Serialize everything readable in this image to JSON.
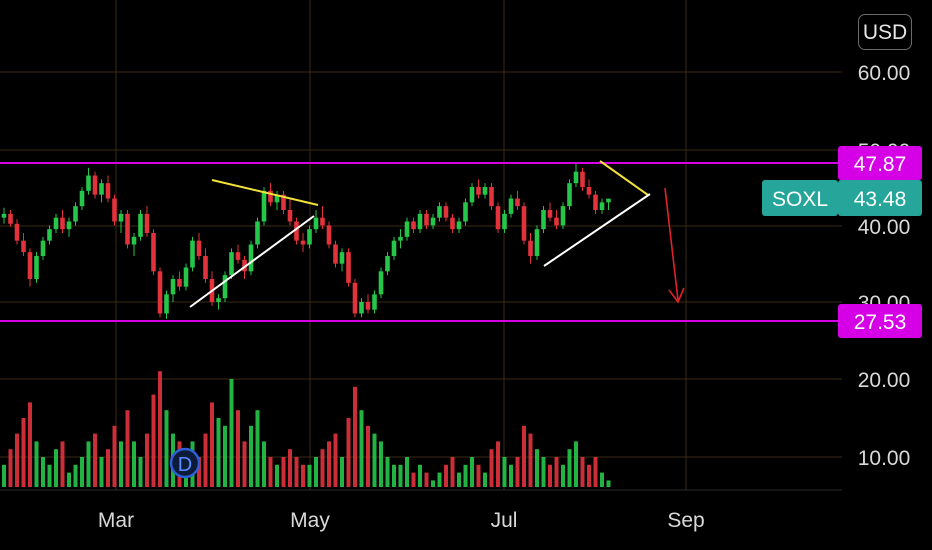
{
  "currency_button": "USD",
  "colors": {
    "up": "#26c64a",
    "down": "#e2333d",
    "range_line": "#d600e6",
    "trend_yellow": "#f2e23a",
    "trend_white": "#ffffff",
    "arrow": "#e0202a",
    "ticker_tag": "#26a69a",
    "grid": "#3a2a12"
  },
  "icons": {
    "dividend_marker": "dividend-icon"
  },
  "dividend_marker_label": "D",
  "chart_data": {
    "type": "candlestick",
    "symbol": "SOXL",
    "currency": "USD",
    "last_price": 43.48,
    "x_labels": [
      "Mar",
      "May",
      "Jul",
      "Sep"
    ],
    "price_axis_labels": [
      "60.00",
      "50.00",
      "40.00",
      "30.00"
    ],
    "volume_axis_labels": [
      "20.00",
      "10.00"
    ],
    "price_range": [
      23,
      67
    ],
    "volume_range": [
      0,
      23
    ],
    "horizontal_levels": [
      {
        "label": "47.87",
        "value": 47.87
      },
      {
        "label": "27.53",
        "value": 27.53
      }
    ],
    "ticker_tag": {
      "label": "SOXL",
      "value_label": "43.48"
    },
    "grid": true,
    "candles": [
      [
        41.0,
        42.3,
        40.2,
        41.5,
        9
      ],
      [
        41.5,
        42.0,
        39.8,
        40.2,
        11
      ],
      [
        40.2,
        40.8,
        37.5,
        38.0,
        13
      ],
      [
        38.0,
        39.0,
        36.0,
        36.5,
        15
      ],
      [
        36.5,
        37.0,
        32.0,
        33.0,
        17
      ],
      [
        33.0,
        36.5,
        32.5,
        36.0,
        12
      ],
      [
        36.0,
        38.5,
        35.5,
        38.0,
        10
      ],
      [
        38.0,
        40.0,
        37.5,
        39.5,
        9
      ],
      [
        39.5,
        41.5,
        39.0,
        41.0,
        11
      ],
      [
        41.0,
        42.0,
        39.0,
        39.5,
        12
      ],
      [
        39.5,
        41.0,
        38.5,
        40.5,
        8
      ],
      [
        40.5,
        43.0,
        40.0,
        42.5,
        9
      ],
      [
        42.5,
        45.0,
        42.0,
        44.5,
        10
      ],
      [
        44.5,
        47.5,
        44.0,
        46.5,
        12
      ],
      [
        46.5,
        47.0,
        43.5,
        44.0,
        13
      ],
      [
        44.0,
        46.0,
        43.0,
        45.5,
        10
      ],
      [
        45.5,
        46.5,
        43.0,
        43.5,
        11
      ],
      [
        43.5,
        44.0,
        40.0,
        40.5,
        14
      ],
      [
        40.5,
        42.0,
        39.0,
        41.5,
        12
      ],
      [
        41.5,
        42.0,
        37.0,
        37.5,
        16
      ],
      [
        37.5,
        39.0,
        36.0,
        38.5,
        12
      ],
      [
        38.5,
        42.0,
        38.0,
        41.5,
        10
      ],
      [
        41.5,
        42.5,
        38.5,
        39.0,
        13
      ],
      [
        39.0,
        39.5,
        33.5,
        34.0,
        18
      ],
      [
        34.0,
        34.5,
        28.0,
        28.5,
        21
      ],
      [
        28.5,
        31.5,
        27.8,
        31.0,
        16
      ],
      [
        31.0,
        33.5,
        30.0,
        33.0,
        13
      ],
      [
        33.0,
        34.0,
        31.5,
        32.0,
        12
      ],
      [
        32.0,
        35.0,
        31.5,
        34.5,
        11
      ],
      [
        34.5,
        38.5,
        34.0,
        38.0,
        12
      ],
      [
        38.0,
        39.0,
        35.5,
        36.0,
        10
      ],
      [
        36.0,
        37.0,
        32.5,
        33.0,
        13
      ],
      [
        33.0,
        34.0,
        29.5,
        30.0,
        17
      ],
      [
        30.0,
        31.0,
        29.0,
        30.5,
        15
      ],
      [
        30.5,
        34.0,
        30.0,
        33.5,
        14
      ],
      [
        33.5,
        37.0,
        33.0,
        36.5,
        20
      ],
      [
        36.5,
        37.5,
        35.0,
        35.5,
        16
      ],
      [
        35.5,
        36.0,
        33.0,
        34.0,
        12
      ],
      [
        34.0,
        38.0,
        33.5,
        37.5,
        14
      ],
      [
        37.5,
        41.0,
        37.0,
        40.5,
        16
      ],
      [
        40.5,
        45.0,
        40.0,
        44.5,
        12
      ],
      [
        44.5,
        45.5,
        42.5,
        43.0,
        10
      ],
      [
        43.0,
        44.5,
        42.0,
        44.0,
        9
      ],
      [
        44.0,
        44.5,
        41.5,
        42.0,
        10
      ],
      [
        42.0,
        43.5,
        40.0,
        40.5,
        11
      ],
      [
        40.5,
        41.0,
        37.5,
        38.0,
        10
      ],
      [
        38.0,
        39.0,
        36.5,
        37.5,
        9
      ],
      [
        37.5,
        40.0,
        37.0,
        39.5,
        9
      ],
      [
        39.5,
        42.0,
        39.0,
        41.0,
        10
      ],
      [
        41.0,
        42.5,
        39.5,
        40.0,
        11
      ],
      [
        40.0,
        40.5,
        37.0,
        37.5,
        12
      ],
      [
        37.5,
        38.0,
        34.5,
        35.0,
        13
      ],
      [
        35.0,
        37.0,
        34.0,
        36.5,
        10
      ],
      [
        36.5,
        37.0,
        32.0,
        32.5,
        15
      ],
      [
        32.5,
        33.0,
        28.0,
        28.5,
        19
      ],
      [
        28.5,
        30.5,
        28.0,
        30.0,
        16
      ],
      [
        30.0,
        31.0,
        28.5,
        29.0,
        14
      ],
      [
        29.0,
        31.5,
        28.5,
        31.0,
        13
      ],
      [
        31.0,
        34.5,
        30.5,
        34.0,
        12
      ],
      [
        34.0,
        36.5,
        33.5,
        36.0,
        10
      ],
      [
        36.0,
        38.5,
        35.5,
        38.0,
        9
      ],
      [
        38.0,
        39.5,
        37.0,
        38.5,
        9
      ],
      [
        38.5,
        41.0,
        38.0,
        40.5,
        10
      ],
      [
        40.5,
        41.0,
        39.0,
        39.5,
        8
      ],
      [
        39.5,
        42.0,
        39.0,
        41.5,
        9
      ],
      [
        41.5,
        42.0,
        39.5,
        40.0,
        8
      ],
      [
        40.0,
        41.5,
        39.5,
        41.0,
        7
      ],
      [
        41.0,
        43.0,
        40.5,
        42.5,
        8
      ],
      [
        42.5,
        43.0,
        40.5,
        41.0,
        9
      ],
      [
        41.0,
        41.5,
        39.0,
        39.5,
        10
      ],
      [
        39.5,
        41.0,
        39.0,
        40.5,
        8
      ],
      [
        40.5,
        43.5,
        40.0,
        43.0,
        9
      ],
      [
        43.0,
        45.5,
        42.5,
        45.0,
        10
      ],
      [
        45.0,
        46.0,
        43.5,
        44.0,
        9
      ],
      [
        44.0,
        45.5,
        43.5,
        45.0,
        8
      ],
      [
        45.0,
        45.5,
        42.0,
        42.5,
        11
      ],
      [
        42.5,
        43.0,
        39.0,
        39.5,
        12
      ],
      [
        39.5,
        42.0,
        39.0,
        41.5,
        10
      ],
      [
        41.5,
        44.0,
        41.0,
        43.5,
        9
      ],
      [
        43.5,
        44.5,
        42.0,
        42.5,
        10
      ],
      [
        42.5,
        43.0,
        37.5,
        38.0,
        14
      ],
      [
        38.0,
        39.0,
        35.0,
        36.0,
        13
      ],
      [
        36.0,
        40.0,
        35.5,
        39.5,
        11
      ],
      [
        39.5,
        42.5,
        39.0,
        42.0,
        10
      ],
      [
        42.0,
        43.0,
        40.5,
        41.0,
        9
      ],
      [
        41.0,
        42.0,
        39.5,
        40.0,
        10
      ],
      [
        40.0,
        43.0,
        39.5,
        42.5,
        9
      ],
      [
        42.5,
        46.0,
        42.0,
        45.5,
        11
      ],
      [
        45.5,
        48.0,
        45.0,
        47.0,
        12
      ],
      [
        47.0,
        47.5,
        44.5,
        45.0,
        10
      ],
      [
        45.0,
        46.0,
        43.5,
        44.0,
        9
      ],
      [
        44.0,
        44.5,
        41.5,
        42.0,
        10
      ],
      [
        42.0,
        43.5,
        41.5,
        43.0,
        8
      ],
      [
        43.0,
        43.5,
        42.0,
        43.48,
        7
      ]
    ]
  }
}
